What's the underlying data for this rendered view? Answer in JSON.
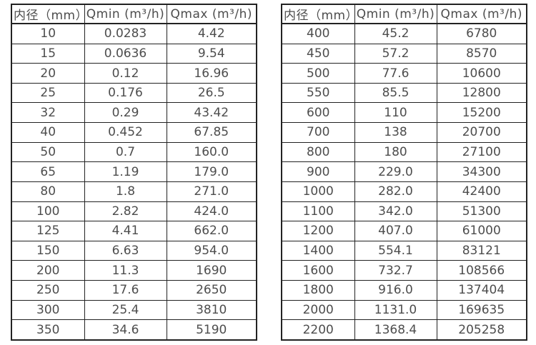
{
  "colors": {
    "text": "#4d4d4d",
    "border": "#222222",
    "background": "#ffffff"
  },
  "chart_data": [
    {
      "type": "table",
      "columns": [
        "内径（mm）",
        "Qmin (m³/h)",
        "Qmax (m³/h)"
      ],
      "rows": [
        [
          "10",
          "0.0283",
          "4.42"
        ],
        [
          "15",
          "0.0636",
          "9.54"
        ],
        [
          "20",
          "0.12",
          "16.96"
        ],
        [
          "25",
          "0.176",
          "26.5"
        ],
        [
          "32",
          "0.29",
          "43.42"
        ],
        [
          "40",
          "0.452",
          "67.85"
        ],
        [
          "50",
          "0.7",
          "160.0"
        ],
        [
          "65",
          "1.19",
          "179.0"
        ],
        [
          "80",
          "1.8",
          "271.0"
        ],
        [
          "100",
          "2.82",
          "424.0"
        ],
        [
          "125",
          "4.41",
          "662.0"
        ],
        [
          "150",
          "6.63",
          "954.0"
        ],
        [
          "200",
          "11.3",
          "1690"
        ],
        [
          "250",
          "17.6",
          "2650"
        ],
        [
          "300",
          "25.4",
          "3810"
        ],
        [
          "350",
          "34.6",
          "5190"
        ]
      ]
    },
    {
      "type": "table",
      "columns": [
        "内径（mm）",
        "Qmin (m³/h)",
        "Qmax (m³/h)"
      ],
      "rows": [
        [
          "400",
          "45.2",
          "6780"
        ],
        [
          "450",
          "57.2",
          "8570"
        ],
        [
          "500",
          "77.6",
          "10600"
        ],
        [
          "550",
          "85.5",
          "12800"
        ],
        [
          "600",
          "110",
          "15200"
        ],
        [
          "700",
          "138",
          "20700"
        ],
        [
          "800",
          "180",
          "27100"
        ],
        [
          "900",
          "229.0",
          "34300"
        ],
        [
          "1000",
          "282.0",
          "42400"
        ],
        [
          "1100",
          "342.0",
          "51300"
        ],
        [
          "1200",
          "407.0",
          "61000"
        ],
        [
          "1400",
          "554.1",
          "83121"
        ],
        [
          "1600",
          "732.7",
          "108566"
        ],
        [
          "1800",
          "916.0",
          "137404"
        ],
        [
          "2000",
          "1131.0",
          "169635"
        ],
        [
          "2200",
          "1368.4",
          "205258"
        ]
      ]
    }
  ]
}
